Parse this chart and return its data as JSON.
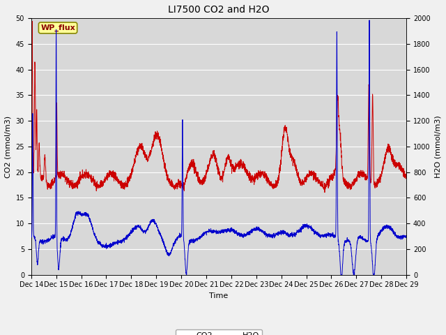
{
  "title": "LI7500 CO2 and H2O",
  "xlabel": "Time",
  "ylabel_left": "CO2 (mmol/m3)",
  "ylabel_right": "H2O (mmol/m3)",
  "ylim_left": [
    0,
    50
  ],
  "ylim_right": [
    0,
    2000
  ],
  "yticks_left": [
    0,
    5,
    10,
    15,
    20,
    25,
    30,
    35,
    40,
    45,
    50
  ],
  "yticks_right": [
    0,
    200,
    400,
    600,
    800,
    1000,
    1200,
    1400,
    1600,
    1800,
    2000
  ],
  "xtick_labels": [
    "Dec 14",
    "Dec 15",
    "Dec 16",
    "Dec 17",
    "Dec 18",
    "Dec 19",
    "Dec 20",
    "Dec 21",
    "Dec 22",
    "Dec 23",
    "Dec 24",
    "Dec 25",
    "Dec 26",
    "Dec 27",
    "Dec 28",
    "Dec 29"
  ],
  "co2_color": "#cc0000",
  "h2o_color": "#0000cc",
  "plot_bg_color": "#d8d8d8",
  "fig_bg_color": "#f0f0f0",
  "grid_color": "#ffffff",
  "annotation_text": "WP_flux",
  "annotation_bg": "#ffff99",
  "annotation_border": "#888800",
  "title_fontsize": 10,
  "axis_label_fontsize": 8,
  "tick_fontsize": 7,
  "legend_fontsize": 8,
  "linewidth": 0.7
}
